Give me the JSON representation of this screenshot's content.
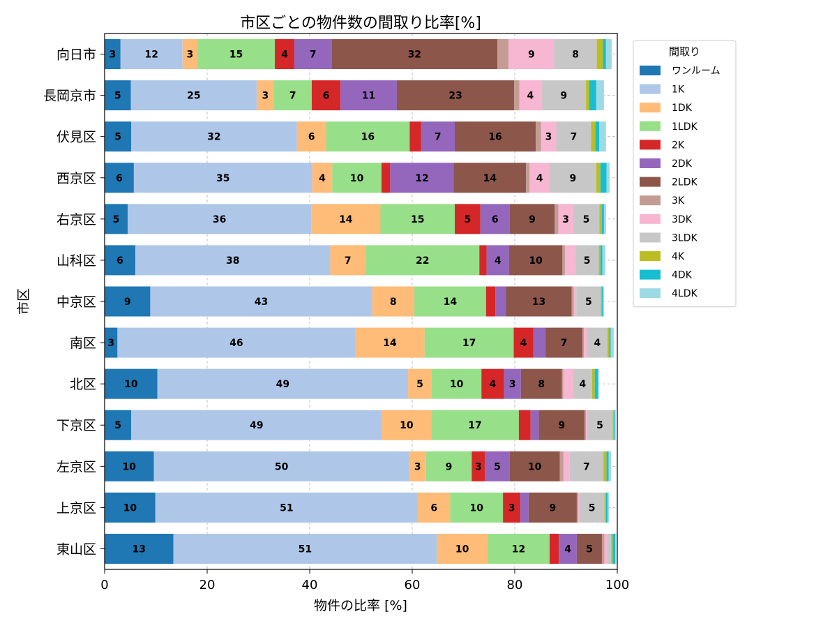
{
  "chart_data": {
    "type": "bar",
    "orientation": "horizontal",
    "stacked": true,
    "title": "市区ごとの物件数の間取り比率[%]",
    "xlabel": "物件の比率 [%]",
    "ylabel": "市区",
    "xlim": [
      0,
      100
    ],
    "xticks": [
      0,
      20,
      40,
      60,
      80,
      100
    ],
    "grid": true,
    "legend_title": "間取り",
    "legend_position": "outside-top-right",
    "categories": [
      "向日市",
      "長岡京市",
      "伏見区",
      "西京区",
      "右京区",
      "山科区",
      "中京区",
      "南区",
      "北区",
      "下京区",
      "左京区",
      "上京区",
      "東山区"
    ],
    "series": [
      {
        "name": "ワンルーム",
        "color": "#1f77b4",
        "values": [
          3.1,
          5.1,
          5.2,
          5.7,
          4.5,
          6.0,
          8.9,
          2.5,
          10.3,
          5.2,
          9.6,
          9.9,
          13.4
        ]
      },
      {
        "name": "1K",
        "color": "#aec7e8",
        "values": [
          12.1,
          24.6,
          32.3,
          34.8,
          35.8,
          38.0,
          43.3,
          46.4,
          48.9,
          48.9,
          49.8,
          51.2,
          51.4
        ]
      },
      {
        "name": "1DK",
        "color": "#ffbb78",
        "values": [
          2.9,
          3.3,
          5.7,
          3.9,
          13.5,
          6.9,
          8.2,
          13.5,
          4.6,
          9.6,
          3.3,
          6.3,
          9.9
        ]
      },
      {
        "name": "1LDK",
        "color": "#98df8a",
        "values": [
          15.1,
          7.4,
          16.3,
          9.6,
          14.5,
          22.2,
          14.0,
          17.4,
          9.7,
          17.1,
          8.9,
          10.3,
          12.1
        ]
      },
      {
        "name": "2K",
        "color": "#d62728",
        "values": [
          3.8,
          5.6,
          2.2,
          1.7,
          5.0,
          1.4,
          1.8,
          3.8,
          4.4,
          2.3,
          2.6,
          3.4,
          1.8
        ]
      },
      {
        "name": "2DK",
        "color": "#9467bd",
        "values": [
          7.3,
          11.0,
          6.6,
          12.4,
          5.7,
          4.4,
          2.1,
          2.4,
          3.3,
          1.6,
          4.8,
          1.6,
          3.5
        ]
      },
      {
        "name": "2LDK",
        "color": "#8c564b",
        "values": [
          32.3,
          22.9,
          15.8,
          14.1,
          8.8,
          10.4,
          12.8,
          7.2,
          8.0,
          8.9,
          9.8,
          9.4,
          4.9
        ]
      },
      {
        "name": "3K",
        "color": "#c49c94",
        "values": [
          2.2,
          1.0,
          1.0,
          0.7,
          0.7,
          0.5,
          0.4,
          0.3,
          0.3,
          0.3,
          0.7,
          0.3,
          0.5
        ]
      },
      {
        "name": "3DK",
        "color": "#f7b6d2",
        "values": [
          8.9,
          4.3,
          3.0,
          3.9,
          2.9,
          2.0,
          0.5,
          0.6,
          1.9,
          0.2,
          1.2,
          0.2,
          0.6
        ]
      },
      {
        "name": "3LDK",
        "color": "#c7c7c7",
        "values": [
          8.3,
          8.7,
          6.8,
          9.1,
          5.1,
          4.6,
          4.8,
          4.0,
          3.7,
          5.0,
          6.6,
          4.9,
          0.7
        ]
      },
      {
        "name": "4K",
        "color": "#bcbd22",
        "values": [
          1.2,
          0.6,
          0.8,
          0.8,
          0.5,
          0.3,
          0.2,
          0.3,
          0.5,
          0.2,
          0.6,
          0.3,
          0.3
        ]
      },
      {
        "name": "4DK",
        "color": "#17becf",
        "values": [
          0.6,
          1.4,
          0.8,
          1.2,
          0.4,
          0.4,
          0.2,
          0.3,
          0.6,
          0.2,
          0.4,
          0.3,
          0.5
        ]
      },
      {
        "name": "4LDK",
        "color": "#9edae5",
        "values": [
          1.1,
          1.5,
          1.3,
          0.6,
          0.4,
          0.6,
          0.2,
          0.6,
          0.3,
          0.2,
          0.5,
          0.3,
          0.2
        ]
      }
    ]
  }
}
